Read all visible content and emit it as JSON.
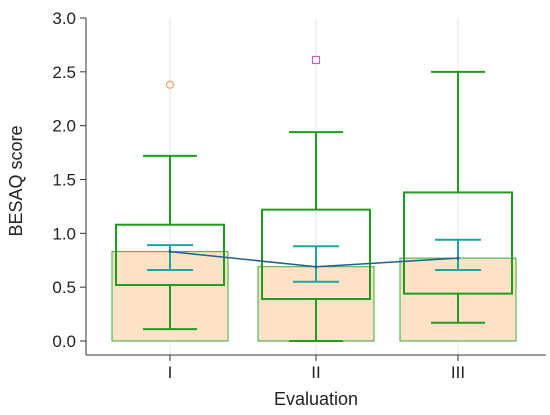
{
  "chart_data": {
    "type": "box",
    "xlabel": "Evaluation",
    "ylabel": "BESAQ score",
    "ylim": [
      0,
      3.0
    ],
    "yticks": [
      "0.0",
      "0.5",
      "1.0",
      "1.5",
      "2.0",
      "2.5",
      "3.0"
    ],
    "categories": [
      "I",
      "II",
      "III"
    ],
    "grid": "vertical",
    "bar_series": {
      "values": [
        0.83,
        0.69,
        0.77
      ]
    },
    "boxes": [
      {
        "category": "I",
        "whisker_low": 0.11,
        "q1": 0.52,
        "q3": 1.08,
        "whisker_high": 1.72,
        "outliers": [
          2.38
        ],
        "outlier_marker": "circle"
      },
      {
        "category": "II",
        "whisker_low": 0.0,
        "q1": 0.39,
        "q3": 1.22,
        "whisker_high": 1.94,
        "outliers": [
          2.61
        ],
        "outlier_marker": "square"
      },
      {
        "category": "III",
        "whisker_low": 0.17,
        "q1": 0.44,
        "q3": 1.38,
        "whisker_high": 2.5,
        "outliers": []
      }
    ],
    "mean_ci": [
      {
        "category": "I",
        "mean": 0.83,
        "ci_low": 0.66,
        "ci_high": 0.89
      },
      {
        "category": "II",
        "mean": 0.69,
        "ci_low": 0.55,
        "ci_high": 0.88
      },
      {
        "category": "III",
        "mean": 0.77,
        "ci_low": 0.66,
        "ci_high": 0.94
      }
    ],
    "colors": {
      "bar_fill": "#fde2c6",
      "bar_edge": "#3aaa3a",
      "box": "#1f9b1f",
      "ci": "#1fa3a3",
      "mean_line": "#1f5f8f",
      "outlier_circle": "#f0a060",
      "outlier_square": "#c060c0",
      "grid": "#e6e6e6",
      "axis": "#333333"
    }
  }
}
